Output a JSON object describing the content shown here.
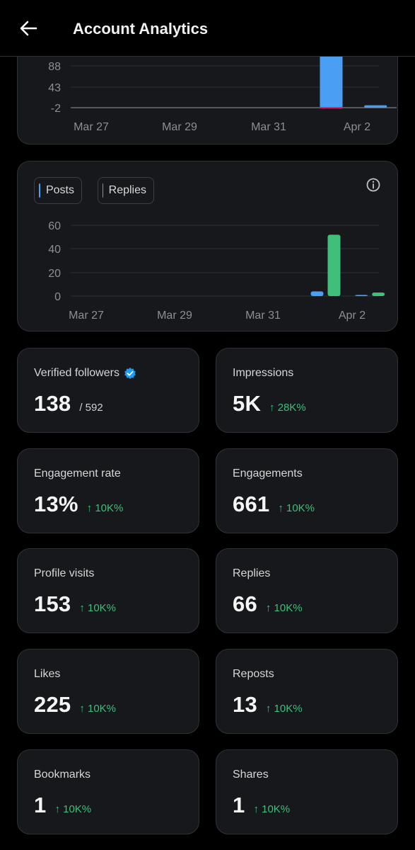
{
  "header": {
    "title": "Account Analytics",
    "back_icon": "arrow-left-icon"
  },
  "top_chart": {
    "y_ticks": [
      "88",
      "43",
      "-2"
    ],
    "x_ticks": [
      "Mar 27",
      "Mar 29",
      "Mar 31",
      "Apr 2"
    ],
    "bar_color": "#4a9ff5"
  },
  "activity_chart": {
    "legend": [
      {
        "label": "Posts",
        "color": "#4a9ff5"
      },
      {
        "label": "Replies",
        "color": "#3fbf77"
      }
    ],
    "y_ticks": [
      "60",
      "40",
      "20",
      "0"
    ],
    "x_ticks": [
      "Mar 27",
      "Mar 29",
      "Mar 31",
      "Apr 2"
    ],
    "info_icon": "info-icon"
  },
  "chart_data": [
    {
      "type": "bar",
      "categories": [
        "Mar 27",
        "Mar 28",
        "Mar 29",
        "Mar 30",
        "Mar 31",
        "Apr 1",
        "Apr 2"
      ],
      "series": [
        {
          "values": [
            0,
            0,
            0,
            0,
            0,
            138,
            5
          ]
        }
      ],
      "ylim": [
        -2,
        133
      ]
    },
    {
      "type": "bar",
      "categories": [
        "Mar 27",
        "Mar 28",
        "Mar 29",
        "Mar 30",
        "Mar 31",
        "Apr 1",
        "Apr 2"
      ],
      "series": [
        {
          "name": "Posts",
          "values": [
            0,
            0,
            0,
            0,
            0,
            4,
            1
          ]
        },
        {
          "name": "Replies",
          "values": [
            0,
            0,
            0,
            0,
            0,
            52,
            3
          ]
        }
      ],
      "ylim": [
        0,
        60
      ],
      "grid": true
    }
  ],
  "stats": {
    "verified_followers": {
      "label": "Verified followers",
      "value": "138",
      "sub": "/ 592",
      "badge_icon": "verified-badge-icon"
    },
    "impressions": {
      "label": "Impressions",
      "value": "5K",
      "change": "↑ 28K%"
    },
    "engagement_rate": {
      "label": "Engagement rate",
      "value": "13%",
      "change": "↑ 10K%"
    },
    "engagements": {
      "label": "Engagements",
      "value": "661",
      "change": "↑ 10K%"
    },
    "profile_visits": {
      "label": "Profile visits",
      "value": "153",
      "change": "↑ 10K%"
    },
    "replies": {
      "label": "Replies",
      "value": "66",
      "change": "↑ 10K%"
    },
    "likes": {
      "label": "Likes",
      "value": "225",
      "change": "↑ 10K%"
    },
    "reposts": {
      "label": "Reposts",
      "value": "13",
      "change": "↑ 10K%"
    },
    "bookmarks": {
      "label": "Bookmarks",
      "value": "1",
      "change": "↑ 10K%"
    },
    "shares": {
      "label": "Shares",
      "value": "1",
      "change": "↑ 10K%"
    }
  }
}
